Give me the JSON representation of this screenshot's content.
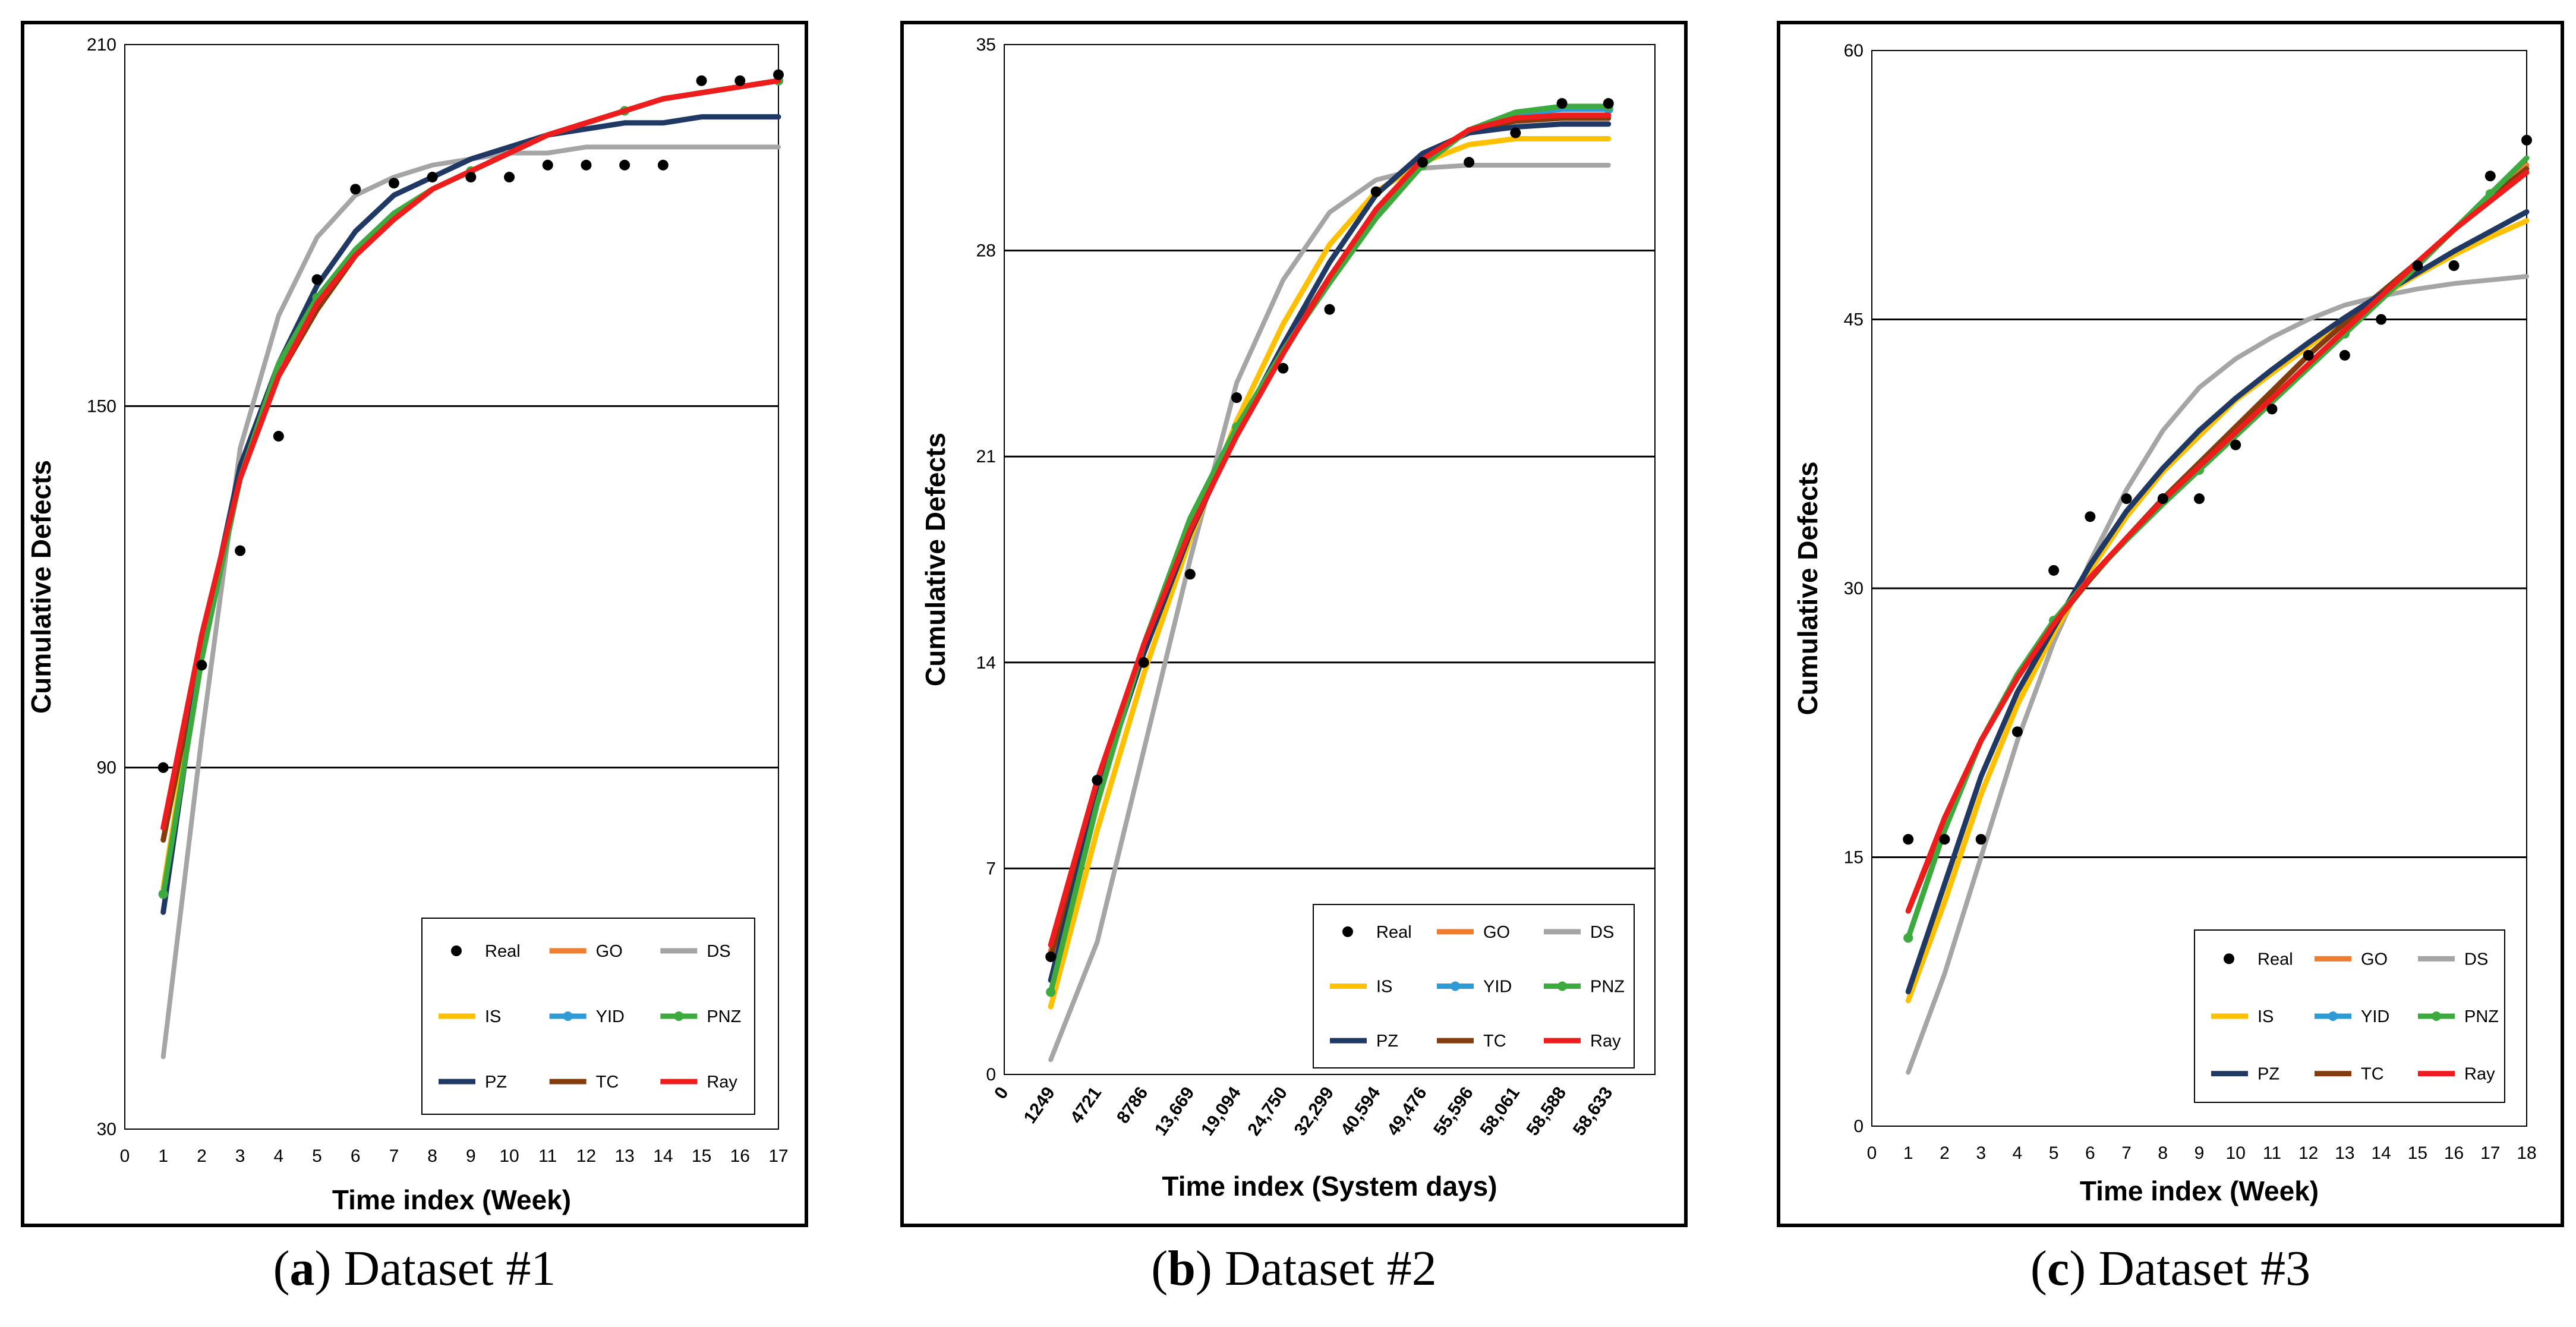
{
  "legend_labels": [
    "Real",
    "GO",
    "DS",
    "IS",
    "YID",
    "PNZ",
    "PZ",
    "TC",
    "Ray"
  ],
  "colors": {
    "Real": "#000000",
    "GO": "#ED7D31",
    "DS": "#A5A5A5",
    "IS": "#FFC000",
    "YID": "#2E9BD6",
    "PNZ": "#3DAA3D",
    "PZ": "#1F3864",
    "TC": "#843C0C",
    "Ray": "#EE1C1C"
  },
  "chart_data": [
    {
      "type": "line",
      "xlabel": "Time index (Week)",
      "ylabel": "Cumulative Defects",
      "xlim": [
        0,
        17
      ],
      "ylim": [
        30,
        210
      ],
      "yticks": [
        30,
        90,
        150,
        210
      ],
      "xticks": [
        "0",
        "1",
        "2",
        "3",
        "4",
        "5",
        "6",
        "7",
        "8",
        "9",
        "10",
        "11",
        "12",
        "13",
        "14",
        "15",
        "16",
        "17"
      ],
      "x": [
        1,
        2,
        3,
        4,
        5,
        6,
        7,
        8,
        9,
        10,
        11,
        12,
        13,
        14,
        15,
        16,
        17
      ],
      "series": [
        {
          "name": "Real",
          "values": [
            90,
            107,
            126,
            145,
            171,
            186,
            187,
            188,
            188,
            188,
            190,
            190,
            190,
            190,
            204,
            204,
            205
          ]
        },
        {
          "name": "GO",
          "values": [
            78,
            110,
            138,
            155,
            166,
            175,
            181,
            186,
            189,
            192,
            195,
            197,
            199,
            201,
            202,
            203,
            204
          ]
        },
        {
          "name": "DS",
          "values": [
            42,
            95,
            143,
            165,
            178,
            185,
            188,
            190,
            191,
            192,
            192,
            193,
            193,
            193,
            193,
            193,
            193
          ]
        },
        {
          "name": "IS",
          "values": [
            70,
            110,
            138,
            155,
            166,
            175,
            181,
            186,
            189,
            192,
            195,
            197,
            199,
            201,
            202,
            203,
            204
          ]
        },
        {
          "name": "YID",
          "values": [
            69,
            108,
            138,
            157,
            168,
            176,
            182,
            186,
            189,
            192,
            195,
            197,
            199,
            201,
            202,
            203,
            204
          ]
        },
        {
          "name": "PNZ",
          "values": [
            69,
            108,
            138,
            157,
            168,
            176,
            182,
            186,
            189,
            192,
            195,
            197,
            199,
            201,
            202,
            203,
            204
          ]
        },
        {
          "name": "PZ",
          "values": [
            66,
            110,
            140,
            157,
            170,
            179,
            185,
            188,
            191,
            193,
            195,
            196,
            197,
            197,
            198,
            198,
            198
          ]
        },
        {
          "name": "TC",
          "values": [
            78,
            110,
            138,
            155,
            166,
            175,
            181,
            186,
            189,
            192,
            195,
            197,
            199,
            201,
            202,
            203,
            204
          ]
        },
        {
          "name": "Ray",
          "values": [
            80,
            112,
            138,
            155,
            167,
            175,
            181,
            186,
            189,
            192,
            195,
            197,
            199,
            201,
            202,
            203,
            204
          ]
        }
      ],
      "legend_position": "bottom-right"
    },
    {
      "type": "line",
      "xlabel": "Time index (System days)",
      "ylabel": "Cumulative Defects",
      "xlim": [
        0,
        14
      ],
      "ylim": [
        0,
        35
      ],
      "yticks": [
        0,
        7,
        14,
        21,
        28,
        35
      ],
      "xticks": [
        "0",
        "1249",
        "4721",
        "8786",
        "13,669",
        "19,094",
        "24,750",
        "32,299",
        "40,594",
        "49,476",
        "55,596",
        "58,061",
        "58,588",
        "58,633"
      ],
      "x": [
        1,
        2,
        3,
        4,
        5,
        6,
        7,
        8,
        9,
        10,
        11,
        12,
        13
      ],
      "series": [
        {
          "name": "Real",
          "values": [
            4,
            10,
            14,
            17,
            23,
            24,
            26,
            30,
            31,
            31,
            32,
            33,
            33
          ]
        },
        {
          "name": "GO",
          "values": [
            4.2,
            9.8,
            14.5,
            18.6,
            21.8,
            24.6,
            27.1,
            29.3,
            31.0,
            32.1,
            32.4,
            32.5,
            32.5
          ]
        },
        {
          "name": "DS",
          "values": [
            0.5,
            4.5,
            11,
            17.5,
            23.5,
            27,
            29.3,
            30.4,
            30.8,
            30.9,
            30.9,
            30.9,
            30.9
          ]
        },
        {
          "name": "IS",
          "values": [
            2.3,
            8.3,
            13.6,
            18.2,
            22.2,
            25.5,
            28.2,
            30.0,
            31.0,
            31.6,
            31.8,
            31.8,
            31.8
          ]
        },
        {
          "name": "YID",
          "values": [
            2.8,
            9.2,
            14.6,
            18.9,
            22.0,
            24.6,
            27.0,
            29.2,
            31.0,
            32.1,
            32.6,
            32.8,
            32.8
          ]
        },
        {
          "name": "PNZ",
          "values": [
            2.8,
            9.2,
            14.6,
            18.9,
            22.0,
            24.6,
            26.9,
            29.1,
            30.9,
            32.1,
            32.7,
            32.9,
            32.9
          ]
        },
        {
          "name": "PZ",
          "values": [
            3.2,
            9.5,
            14.3,
            18.4,
            21.8,
            24.8,
            27.6,
            29.9,
            31.3,
            32.0,
            32.2,
            32.3,
            32.3
          ]
        },
        {
          "name": "TC",
          "values": [
            4.0,
            9.7,
            14.4,
            18.5,
            21.8,
            24.6,
            27.1,
            29.3,
            31.0,
            32.1,
            32.4,
            32.5,
            32.5
          ]
        },
        {
          "name": "Ray",
          "values": [
            4.4,
            10.0,
            14.6,
            18.5,
            21.7,
            24.5,
            27.1,
            29.4,
            31.1,
            32.1,
            32.5,
            32.6,
            32.6
          ]
        }
      ],
      "legend_position": "bottom-right"
    },
    {
      "type": "line",
      "xlabel": "Time index (Week)",
      "ylabel": "Cumulative Defects",
      "xlim": [
        0,
        18
      ],
      "ylim": [
        0,
        60
      ],
      "yticks": [
        0,
        15,
        30,
        45,
        60
      ],
      "xticks": [
        "0",
        "1",
        "2",
        "3",
        "4",
        "5",
        "6",
        "7",
        "8",
        "9",
        "10",
        "11",
        "12",
        "13",
        "14",
        "15",
        "16",
        "17",
        "18"
      ],
      "x": [
        1,
        2,
        3,
        4,
        5,
        6,
        7,
        8,
        9,
        10,
        11,
        12,
        13,
        14,
        15,
        16,
        17,
        18
      ],
      "series": [
        {
          "name": "Real",
          "values": [
            16,
            16,
            16,
            22,
            31,
            34,
            35,
            35,
            35,
            38,
            40,
            43,
            43,
            45,
            48,
            48,
            53,
            55
          ]
        },
        {
          "name": "GO",
          "values": [
            12,
            17,
            21.5,
            25,
            28,
            30.5,
            32.8,
            35,
            37,
            39,
            41,
            43,
            44.8,
            46.5,
            48.2,
            50,
            51.8,
            53.6
          ]
        },
        {
          "name": "DS",
          "values": [
            3,
            8.5,
            15,
            21.5,
            27,
            31.5,
            35.5,
            38.8,
            41.2,
            42.8,
            44,
            45,
            45.8,
            46.3,
            46.7,
            47,
            47.2,
            47.4
          ]
        },
        {
          "name": "IS",
          "values": [
            7,
            12.5,
            18.5,
            23.5,
            27.5,
            31,
            34,
            36.5,
            38.5,
            40.5,
            42,
            43.5,
            45,
            46.3,
            47.5,
            48.6,
            49.6,
            50.5
          ]
        },
        {
          "name": "YID",
          "values": [
            10.5,
            16.5,
            21.5,
            25.2,
            28.2,
            30.6,
            32.7,
            34.7,
            36.6,
            38.5,
            40.4,
            42.3,
            44.2,
            46.1,
            48.0,
            50.0,
            52.0,
            54.0
          ]
        },
        {
          "name": "PNZ",
          "values": [
            10.5,
            16.5,
            21.5,
            25.2,
            28.2,
            30.6,
            32.7,
            34.7,
            36.6,
            38.5,
            40.4,
            42.3,
            44.2,
            46.1,
            48.0,
            50.0,
            52.0,
            54.0
          ]
        },
        {
          "name": "PZ",
          "values": [
            7.5,
            13.5,
            19.5,
            24.2,
            27.8,
            31.3,
            34.3,
            36.7,
            38.8,
            40.6,
            42.2,
            43.7,
            45.1,
            46.4,
            47.6,
            48.8,
            49.9,
            51.0
          ]
        },
        {
          "name": "TC",
          "values": [
            12,
            17,
            21.5,
            25,
            28,
            30.5,
            32.8,
            35,
            37,
            39,
            41,
            43,
            44.8,
            46.5,
            48.2,
            50,
            51.8,
            53.4
          ]
        },
        {
          "name": "Ray",
          "values": [
            12,
            17.2,
            21.5,
            25,
            28,
            30.6,
            32.8,
            34.9,
            36.8,
            38.7,
            40.6,
            42.5,
            44.4,
            46.3,
            48.2,
            50.0,
            51.6,
            53.2
          ]
        }
      ],
      "legend_position": "bottom-right"
    }
  ],
  "captions": [
    {
      "letter": "a",
      "rest": "Dataset #1"
    },
    {
      "letter": "b",
      "rest": "Dataset #2"
    },
    {
      "letter": "c",
      "rest": "Dataset #3"
    }
  ]
}
